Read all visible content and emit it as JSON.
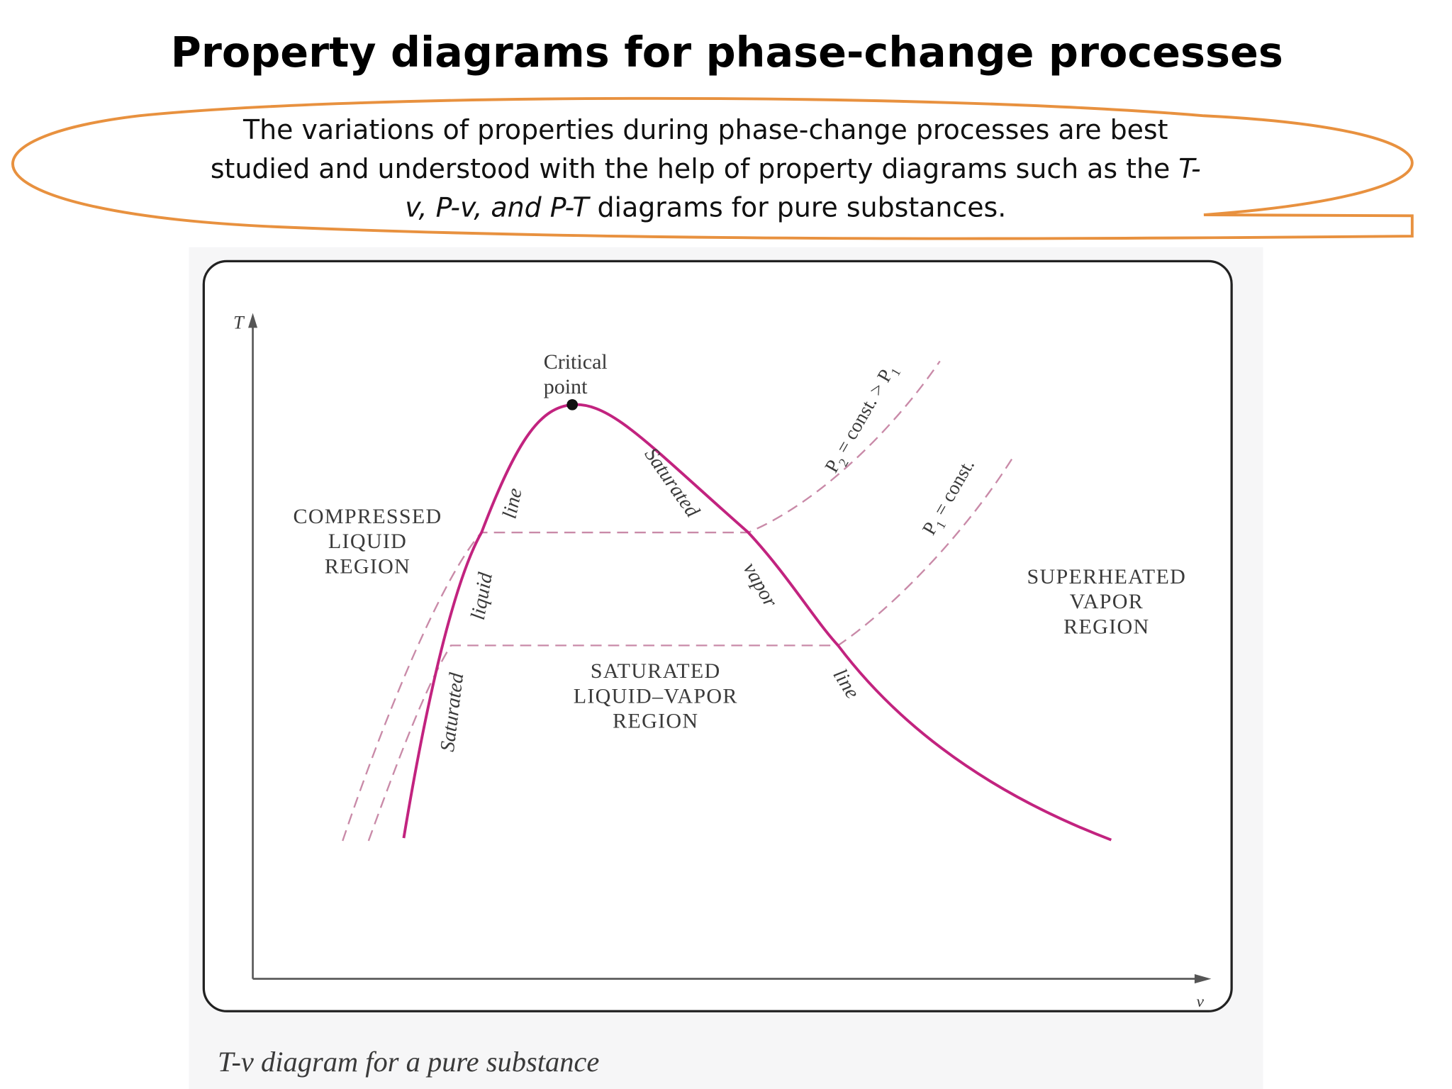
{
  "header": {
    "title": "Property diagrams for phase-change processes"
  },
  "description": [
    [
      "The variations of properties during phase-change processes are best"
    ],
    [
      "studied and understood with the help of property diagrams such as the ",
      "T-"
    ],
    [
      "v, P-v, and P-T",
      " diagrams for pure substances."
    ]
  ],
  "figure": {
    "y_axis": "T",
    "x_axis": "v",
    "critical_point": [
      "Critical",
      "point"
    ],
    "compressed_region": [
      "COMPRESSED",
      "LIQUID",
      "REGION"
    ],
    "mixture_region": [
      "SATURATED",
      "LIQUID–VAPOR",
      "REGION"
    ],
    "superheated_region": [
      "SUPERHEATED",
      "VAPOR",
      "REGION"
    ],
    "liquid_line": [
      "Saturated",
      "liquid",
      "line"
    ],
    "vapor_line": [
      "Saturated",
      "vapor",
      "line"
    ],
    "isobar_2": [
      "P",
      "2",
      " = const. > P",
      "1"
    ],
    "isobar_1": [
      "P",
      "1",
      " = const."
    ],
    "caption": "T-v diagram for a pure substance"
  }
}
